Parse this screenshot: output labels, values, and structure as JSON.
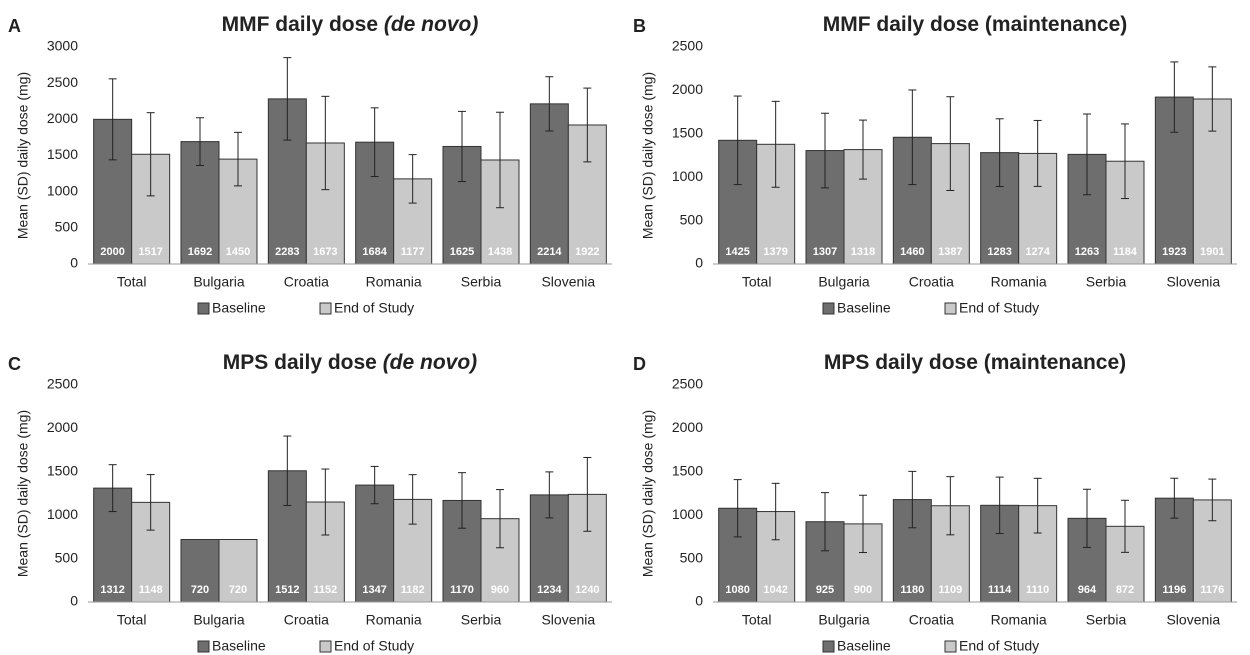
{
  "chart_data": [
    {
      "type": "bar",
      "panel": "A",
      "title": "MMF daily dose",
      "title_italic": "(de novo)",
      "y_label": "Mean (SD) daily dose (mg)",
      "categories": [
        "Total",
        "Bulgaria",
        "Croatia",
        "Romania",
        "Serbia",
        "Slovenia"
      ],
      "series": [
        {
          "name": "Baseline",
          "color": "#6e6e6e",
          "values": [
            2000,
            1692,
            2283,
            1684,
            1625,
            2214
          ],
          "errors": [
            560,
            330,
            570,
            475,
            485,
            375
          ]
        },
        {
          "name": "End of Study",
          "color": "#c9c9c9",
          "values": [
            1517,
            1450,
            1673,
            1177,
            1438,
            1922
          ],
          "errors": [
            575,
            370,
            645,
            335,
            660,
            510
          ]
        }
      ],
      "ylim": [
        0,
        3000
      ],
      "yticks": [
        0,
        500,
        1000,
        1500,
        2000,
        2500,
        3000
      ],
      "grid": false,
      "legend": "bottom"
    },
    {
      "type": "bar",
      "panel": "B",
      "title": "MMF daily dose (maintenance)",
      "y_label": "Mean (SD) daily dose (mg)",
      "categories": [
        "Total",
        "Bulgaria",
        "Croatia",
        "Romania",
        "Serbia",
        "Slovenia"
      ],
      "series": [
        {
          "name": "Baseline",
          "color": "#6e6e6e",
          "values": [
            1425,
            1307,
            1460,
            1283,
            1263,
            1923
          ],
          "errors": [
            510,
            430,
            545,
            390,
            465,
            405
          ]
        },
        {
          "name": "End of Study",
          "color": "#c9c9c9",
          "values": [
            1379,
            1318,
            1387,
            1274,
            1184,
            1901
          ],
          "errors": [
            495,
            340,
            540,
            380,
            430,
            370
          ]
        }
      ],
      "ylim": [
        0,
        2500
      ],
      "yticks": [
        0,
        500,
        1000,
        1500,
        2000,
        2500
      ],
      "grid": false,
      "legend": "bottom"
    },
    {
      "type": "bar",
      "panel": "C",
      "title": "MPS daily dose",
      "title_italic": "(de novo)",
      "y_label": "Mean (SD) daily dose (mg)",
      "categories": [
        "Total",
        "Bulgaria",
        "Croatia",
        "Romania",
        "Serbia",
        "Slovenia"
      ],
      "series": [
        {
          "name": "Baseline",
          "color": "#6e6e6e",
          "values": [
            1312,
            720,
            1512,
            1347,
            1170,
            1234
          ],
          "errors": [
            270,
            null,
            400,
            215,
            320,
            265
          ]
        },
        {
          "name": "End of Study",
          "color": "#c9c9c9",
          "values": [
            1148,
            720,
            1152,
            1182,
            960,
            1240
          ],
          "errors": [
            320,
            null,
            380,
            285,
            335,
            425
          ]
        }
      ],
      "ylim": [
        0,
        2500
      ],
      "yticks": [
        0,
        500,
        1000,
        1500,
        2000,
        2500
      ],
      "grid": false,
      "legend": "bottom"
    },
    {
      "type": "bar",
      "panel": "D",
      "title": "MPS daily dose (maintenance)",
      "y_label": "Mean (SD) daily dose (mg)",
      "categories": [
        "Total",
        "Bulgaria",
        "Croatia",
        "Romania",
        "Serbia",
        "Slovenia"
      ],
      "series": [
        {
          "name": "Baseline",
          "color": "#6e6e6e",
          "values": [
            1080,
            925,
            1180,
            1114,
            964,
            1196
          ],
          "errors": [
            330,
            335,
            325,
            325,
            335,
            230
          ]
        },
        {
          "name": "End of Study",
          "color": "#c9c9c9",
          "values": [
            1042,
            900,
            1109,
            1110,
            872,
            1176
          ],
          "errors": [
            325,
            330,
            335,
            315,
            300,
            240
          ]
        }
      ],
      "ylim": [
        0,
        2500
      ],
      "yticks": [
        0,
        500,
        1000,
        1500,
        2000,
        2500
      ],
      "grid": false,
      "legend": "bottom"
    }
  ]
}
